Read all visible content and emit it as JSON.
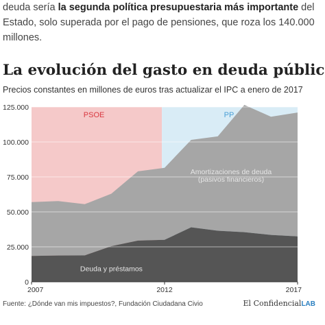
{
  "intro": {
    "pre": "deuda sería ",
    "bold": "la segunda política presupuestaria más importante",
    "post": " del Estado, solo superada por el pago de pensiones, que roza los 140.000 millones."
  },
  "colors": {
    "psoe_band": "#f5c9c9",
    "pp_band": "#d9ecf6",
    "amortizaciones": "#a6a6a6",
    "deuda": "#555555",
    "psoe_text": "#d9373f",
    "pp_text": "#4a9fd6",
    "brand_lab": "#2a7fc0"
  },
  "chart_data": {
    "type": "area",
    "title": "La evolución del gasto en deuda pública",
    "subtitle": "Precios constantes en millones de euros tras actualizar el IPC a enero de 2017",
    "x": [
      2007,
      2008,
      2009,
      2010,
      2011,
      2012,
      2013,
      2014,
      2015,
      2016,
      2017
    ],
    "x_ticks": [
      2007,
      2012,
      2017
    ],
    "ylim": [
      0,
      125000
    ],
    "y_ticks": [
      {
        "value": 0,
        "label": "0"
      },
      {
        "value": 25000,
        "label": "25.000"
      },
      {
        "value": 50000,
        "label": "50.000"
      },
      {
        "value": 75000,
        "label": "75.000"
      },
      {
        "value": 100000,
        "label": "100.000"
      },
      {
        "value": 125000,
        "label": "125.000"
      }
    ],
    "grid": true,
    "series": [
      {
        "name": "Deuda y préstamos",
        "values": [
          18500,
          18800,
          18900,
          25500,
          29500,
          30000,
          39000,
          36500,
          35500,
          33500,
          32500
        ]
      },
      {
        "name": "Amortizaciones de deuda (pasivos financieros)",
        "values": [
          38500,
          38900,
          36600,
          37500,
          49500,
          51500,
          62500,
          67500,
          91000,
          84500,
          88500
        ]
      }
    ],
    "bands": [
      {
        "label": "PSOE",
        "from": 2007,
        "to": 2011.9
      },
      {
        "label": "PP",
        "from": 2011.9,
        "to": 2017
      }
    ],
    "annotations": [
      {
        "text": "Amortizaciones de deuda",
        "x": 2014.5,
        "y": 77000
      },
      {
        "text": "(pasivos financieros)",
        "x": 2014.5,
        "y": 71500
      },
      {
        "text": "Deuda y préstamos",
        "x": 2010.0,
        "y": 7500
      }
    ]
  },
  "footer": {
    "source": "Fuente: ¿Dónde van mis impuestos?, Fundación Ciudadana Civio",
    "brand_name": "El Confidencial",
    "brand_lab": "LAB"
  }
}
